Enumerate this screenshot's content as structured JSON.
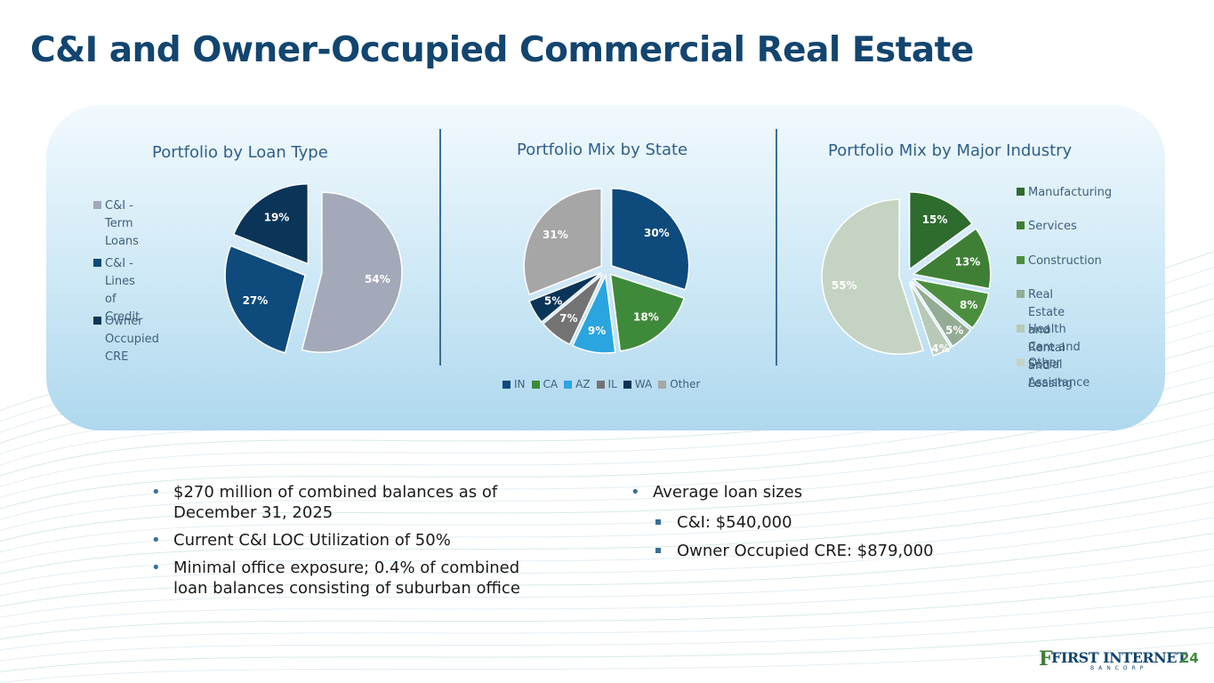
{
  "title": "C&I and Owner-Occupied Commercial Real Estate",
  "chart_data": [
    {
      "type": "pie",
      "title": "Portfolio by Loan Type",
      "slices": [
        {
          "label": "C&I - Term Loans",
          "value": 54,
          "display": "54%",
          "color": "#a3a9b9"
        },
        {
          "label": "C&I - Lines of Credit",
          "value": 27,
          "display": "27%",
          "color": "#0e4a7c"
        },
        {
          "label": "Owner Occupied CRE",
          "value": 19,
          "display": "19%",
          "color": "#0b3558"
        }
      ],
      "legend_placement": "left"
    },
    {
      "type": "pie",
      "title": "Portfolio Mix by State",
      "slices": [
        {
          "label": "IN",
          "value": 30,
          "display": "30%",
          "color": "#0e4a7c"
        },
        {
          "label": "CA",
          "value": 18,
          "display": "18%",
          "color": "#3f8a3a"
        },
        {
          "label": "AZ",
          "value": 9,
          "display": "9%",
          "color": "#2aa5e0"
        },
        {
          "label": "IL",
          "value": 7,
          "display": "7%",
          "color": "#737373"
        },
        {
          "label": "WA",
          "value": 5,
          "display": "5%",
          "color": "#0b3558"
        },
        {
          "label": "Other",
          "value": 31,
          "display": "31%",
          "color": "#a6a6a6"
        }
      ],
      "legend_placement": "bottom"
    },
    {
      "type": "pie",
      "title": "Portfolio Mix by Major Industry",
      "slices": [
        {
          "label": "Manufacturing",
          "value": 15,
          "display": "15%",
          "color": "#2e6b2e"
        },
        {
          "label": "Services",
          "value": 13,
          "display": "13%",
          "color": "#3f7f35"
        },
        {
          "label": "Construction",
          "value": 8,
          "display": "8%",
          "color": "#4b8f3e"
        },
        {
          "label": "Real Estate and Rental and Leasing",
          "value": 5,
          "display": "5%",
          "color": "#93ac93"
        },
        {
          "label": "Health Care and Social Assistance",
          "value": 4,
          "display": "4%",
          "color": "#b7c9b7"
        },
        {
          "label": "Other",
          "value": 55,
          "display": "55%",
          "color": "#c5d4c2"
        }
      ],
      "legend_placement": "right"
    }
  ],
  "legend1": {
    "items": [
      {
        "line1": "C&I - Term",
        "line2": "Loans",
        "color": "#a3a9b9"
      },
      {
        "line1": "C&I - Lines of",
        "line2": "Credit",
        "color": "#0e4a7c"
      },
      {
        "line1": "Owner",
        "line2": "Occupied CRE",
        "color": "#0b3558"
      }
    ]
  },
  "legend3": {
    "items": [
      {
        "line1": "Manufacturing",
        "line2": "",
        "color": "#2e6b2e"
      },
      {
        "line1": "Services",
        "line2": "",
        "color": "#3f7f35"
      },
      {
        "line1": "Construction",
        "line2": "",
        "color": "#4b8f3e"
      },
      {
        "line1": "Real Estate and",
        "line2": "Rental and Leasing",
        "color": "#93ac93"
      },
      {
        "line1": "Health Care and",
        "line2": "Social Assistance",
        "color": "#b7c9b7"
      },
      {
        "line1": "Other",
        "line2": "",
        "color": "#c5d4c2"
      }
    ]
  },
  "bullets_left": [
    {
      "line1": "$270 million of combined balances as of",
      "line2": "December 31, 2025"
    },
    {
      "line1": "Current C&I LOC Utilization of 50%",
      "line2": ""
    },
    {
      "line1": "Minimal office exposure; 0.4% of combined",
      "line2": "loan balances consisting of suburban office"
    }
  ],
  "bullets_right": {
    "main": "Average loan sizes",
    "subs": [
      "C&I: $540,000",
      "Owner Occupied CRE: $879,000"
    ]
  },
  "logo": {
    "mark": "F",
    "name": "FIRST INTERNET",
    "sub": "BANCORP"
  },
  "page_number": "24"
}
